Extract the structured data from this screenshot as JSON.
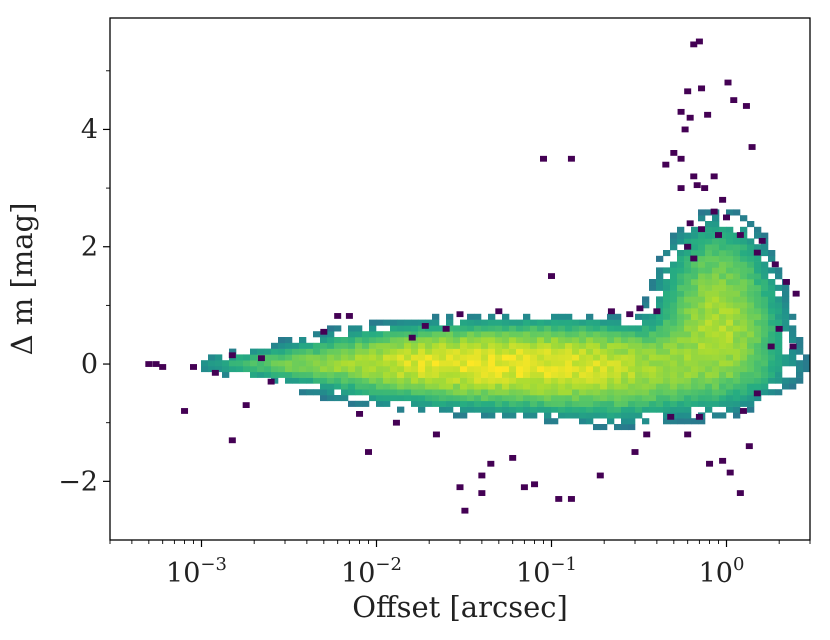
{
  "chart_data": {
    "type": "heatmap",
    "title": "",
    "xlabel": "Offset [arcsec]",
    "ylabel": "Δ m [mag]",
    "x_scale": "log",
    "xlim": [
      0.0003,
      3.0
    ],
    "ylim": [
      -3.0,
      5.9
    ],
    "x_ticks": [
      {
        "value": 0.001,
        "base": "10",
        "exp": "−3"
      },
      {
        "value": 0.01,
        "base": "10",
        "exp": "−2"
      },
      {
        "value": 0.1,
        "base": "10",
        "exp": "−1"
      },
      {
        "value": 1,
        "base": "10",
        "exp": "0"
      }
    ],
    "y_ticks": [
      {
        "value": -2,
        "label": "−2"
      },
      {
        "value": 0,
        "label": "0"
      },
      {
        "value": 2,
        "label": "2"
      },
      {
        "value": 4,
        "label": "4"
      }
    ],
    "grid": false,
    "colormap": "viridis",
    "colors": {
      "low": "#440154",
      "mid": "#21918c",
      "high": "#fde725"
    },
    "density_components": [
      {
        "x_center": 0.08,
        "y_center": -0.02,
        "x_sigma_dex": 0.55,
        "y_sigma": 0.32,
        "peak": 1.0
      },
      {
        "x_center": 0.02,
        "y_center": 0.05,
        "x_sigma_dex": 0.35,
        "y_sigma": 0.22,
        "peak": 0.5
      },
      {
        "x_center": 0.004,
        "y_center": 0.0,
        "x_sigma_dex": 0.3,
        "y_sigma": 0.12,
        "peak": 0.25
      },
      {
        "x_center": 0.9,
        "y_center": 0.6,
        "x_sigma_dex": 0.17,
        "y_sigma": 0.55,
        "peak": 0.55
      },
      {
        "x_center": 0.9,
        "y_center": 1.6,
        "x_sigma_dex": 0.15,
        "y_sigma": 0.5,
        "peak": 0.18
      },
      {
        "x_center": 0.25,
        "y_center": -0.4,
        "x_sigma_dex": 0.3,
        "y_sigma": 0.35,
        "peak": 0.12
      }
    ],
    "outliers": [
      [
        0.0005,
        0.0
      ],
      [
        0.00055,
        0.0
      ],
      [
        0.0006,
        -0.05
      ],
      [
        0.0008,
        -0.8
      ],
      [
        0.0009,
        -0.05
      ],
      [
        0.0012,
        -0.15
      ],
      [
        0.0015,
        0.15
      ],
      [
        0.0015,
        -1.3
      ],
      [
        0.0018,
        -0.7
      ],
      [
        0.0022,
        0.1
      ],
      [
        0.0025,
        -0.3
      ],
      [
        0.006,
        0.82
      ],
      [
        0.007,
        0.82
      ],
      [
        0.009,
        -1.5
      ],
      [
        0.013,
        -1.0
      ],
      [
        0.016,
        0.45
      ],
      [
        0.019,
        0.65
      ],
      [
        0.022,
        -1.2
      ],
      [
        0.025,
        0.6
      ],
      [
        0.03,
        -2.1
      ],
      [
        0.032,
        -2.5
      ],
      [
        0.04,
        -2.2
      ],
      [
        0.045,
        -1.7
      ],
      [
        0.06,
        -1.6
      ],
      [
        0.07,
        -2.1
      ],
      [
        0.08,
        -2.05
      ],
      [
        0.09,
        3.5
      ],
      [
        0.1,
        1.5
      ],
      [
        0.11,
        -2.3
      ],
      [
        0.13,
        3.5
      ],
      [
        0.13,
        -2.3
      ],
      [
        0.19,
        -1.9
      ],
      [
        0.22,
        0.9
      ],
      [
        0.3,
        -1.5
      ],
      [
        0.35,
        -1.2
      ],
      [
        0.32,
        0.95
      ],
      [
        0.45,
        3.4
      ],
      [
        0.5,
        3.6
      ],
      [
        0.55,
        3.5
      ],
      [
        0.55,
        4.3
      ],
      [
        0.58,
        4.0
      ],
      [
        0.6,
        4.65
      ],
      [
        0.62,
        4.2
      ],
      [
        0.68,
        3.05
      ],
      [
        0.72,
        4.7
      ],
      [
        0.78,
        4.25
      ],
      [
        0.85,
        3.2
      ],
      [
        0.95,
        2.8
      ],
      [
        1.0,
        2.5
      ],
      [
        1.02,
        4.8
      ],
      [
        1.1,
        4.5
      ],
      [
        1.3,
        4.4
      ],
      [
        1.4,
        3.7
      ],
      [
        1.6,
        2.1
      ],
      [
        1.9,
        1.7
      ],
      [
        2.2,
        1.4
      ],
      [
        2.5,
        1.2
      ],
      [
        2.0,
        0.6
      ],
      [
        2.4,
        0.3
      ],
      [
        0.7,
        5.5
      ],
      [
        0.65,
        5.45
      ],
      [
        1.2,
        2.2
      ],
      [
        1.5,
        1.9
      ],
      [
        0.65,
        3.2
      ],
      [
        0.62,
        2.4
      ],
      [
        0.8,
        -1.7
      ],
      [
        0.95,
        -1.65
      ],
      [
        1.05,
        -1.85
      ],
      [
        1.2,
        -2.2
      ],
      [
        1.25,
        -0.8
      ],
      [
        1.35,
        -1.4
      ],
      [
        1.5,
        -0.5
      ],
      [
        1.8,
        0.3
      ],
      [
        0.03,
        0.85
      ],
      [
        0.05,
        0.9
      ],
      [
        0.28,
        0.85
      ],
      [
        0.4,
        0.9
      ],
      [
        0.005,
        0.55
      ],
      [
        0.008,
        -0.85
      ],
      [
        0.04,
        -1.9
      ],
      [
        0.6,
        2.0
      ],
      [
        0.65,
        1.8
      ],
      [
        0.72,
        2.3
      ],
      [
        0.85,
        2.6
      ],
      [
        0.55,
        3.0
      ],
      [
        0.75,
        3.0
      ],
      [
        0.9,
        2.2
      ],
      [
        0.48,
        -0.9
      ],
      [
        0.6,
        -1.2
      ],
      [
        0.7,
        -0.9
      ]
    ]
  }
}
